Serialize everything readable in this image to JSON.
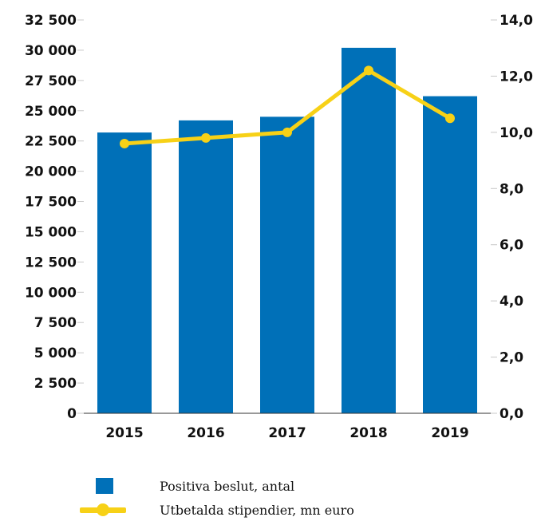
{
  "chart_data": {
    "type": "bar",
    "categories": [
      "2015",
      "2016",
      "2017",
      "2018",
      "2019"
    ],
    "series": [
      {
        "name": "Positiva beslut, antal",
        "type": "bar",
        "axis": "left",
        "values": [
          23200,
          24200,
          24500,
          30200,
          26200
        ]
      },
      {
        "name": "Utbetalda stipendier, mn euro",
        "type": "line",
        "axis": "right",
        "values": [
          9.6,
          9.8,
          10.0,
          12.2,
          10.5
        ]
      }
    ],
    "y_left": {
      "ylim": [
        0,
        32500
      ],
      "ticks": [
        "0",
        "2 500",
        "5 000",
        "7 500",
        "10 000",
        "12 500",
        "15 000",
        "17 500",
        "20 000",
        "22 500",
        "25 000",
        "27 500",
        "30 000",
        "32 500"
      ]
    },
    "y_right": {
      "ylim": [
        0,
        14
      ],
      "ticks": [
        "0,0",
        "2,0",
        "4,0",
        "6,0",
        "8,0",
        "10,0",
        "12,0",
        "14,0"
      ]
    },
    "grid": false,
    "legend_position": "bottom-left"
  },
  "colors": {
    "bar": "#0070b8",
    "line": "#f7d117",
    "tick_mark": "#c8c8c8",
    "axis": "#333333"
  },
  "legend": {
    "bars_label": "Positiva beslut, antal",
    "line_label": "Utbetalda stipendier, mn euro"
  }
}
